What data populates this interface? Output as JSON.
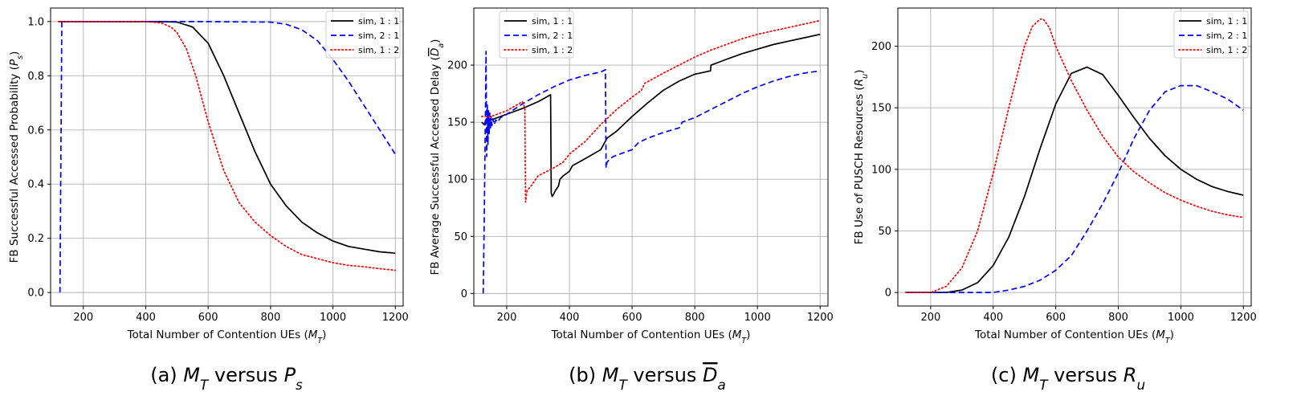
{
  "legend_labels": [
    "sim, 1 : 1",
    "sim, 2 : 1",
    "sim, 1 : 2"
  ],
  "colors": {
    "s11": "#000000",
    "s21": "#0000ff",
    "s12": "#ff0000",
    "grid": "#b0b0b0",
    "legend_frame": "#cccccc"
  },
  "chart_data": [
    {
      "type": "line",
      "xlabel": "Total Number of Contention UEs (M_T)",
      "ylabel": "FB Successful Accessed Probability (P_s)",
      "caption": "(a) M_T versus P_s",
      "xlim": [
        95,
        1225
      ],
      "ylim": [
        -0.05,
        1.05
      ],
      "xticks": [
        200,
        400,
        600,
        800,
        1000,
        1200
      ],
      "yticks": [
        0.0,
        0.2,
        0.4,
        0.6,
        0.8,
        1.0
      ],
      "ytick_labels": [
        "0.0",
        "0.2",
        "0.4",
        "0.6",
        "0.8",
        "1.0"
      ],
      "grid": true,
      "legend": "top-right",
      "series": [
        {
          "name": "sim, 1 : 1",
          "style": "solid",
          "color": "#000000",
          "x": [
            120,
            300,
            450,
            500,
            550,
            600,
            650,
            700,
            750,
            800,
            850,
            900,
            950,
            1000,
            1050,
            1100,
            1150,
            1200
          ],
          "y": [
            1.0,
            1.0,
            1.0,
            0.998,
            0.98,
            0.92,
            0.8,
            0.66,
            0.52,
            0.4,
            0.32,
            0.26,
            0.22,
            0.19,
            0.17,
            0.16,
            0.15,
            0.145
          ]
        },
        {
          "name": "sim, 2 : 1",
          "style": "dashed",
          "color": "#0000ff",
          "x": [
            125,
            128,
            131,
            200,
            400,
            600,
            800,
            850,
            900,
            950,
            1000,
            1050,
            1100,
            1150,
            1200
          ],
          "y": [
            0.0,
            0.5,
            1.0,
            1.0,
            1.0,
            1.0,
            0.998,
            0.99,
            0.97,
            0.93,
            0.86,
            0.78,
            0.69,
            0.6,
            0.51
          ]
        },
        {
          "name": "sim, 1 : 2",
          "style": "dotted",
          "color": "#ff0000",
          "x": [
            120,
            300,
            400,
            450,
            480,
            500,
            530,
            560,
            600,
            650,
            700,
            750,
            800,
            850,
            900,
            950,
            1000,
            1050,
            1100,
            1150,
            1200
          ],
          "y": [
            1.0,
            1.0,
            1.0,
            0.995,
            0.98,
            0.96,
            0.9,
            0.8,
            0.63,
            0.45,
            0.33,
            0.26,
            0.21,
            0.17,
            0.14,
            0.125,
            0.11,
            0.1,
            0.095,
            0.088,
            0.082
          ]
        }
      ]
    },
    {
      "type": "line",
      "xlabel": "Total Number of Contention UEs (M_T)",
      "ylabel": "FB Average Successful Accessed Delay (D_a)",
      "caption": "(b) M_T versus D_a",
      "xlim": [
        95,
        1225
      ],
      "ylim": [
        -11,
        250
      ],
      "xticks": [
        200,
        400,
        600,
        800,
        1000,
        1200
      ],
      "yticks": [
        0,
        50,
        100,
        150,
        200
      ],
      "ytick_labels": [
        "0",
        "50",
        "100",
        "150",
        "200"
      ],
      "grid": true,
      "legend": "top-left",
      "series": [
        {
          "name": "sim, 1 : 1",
          "style": "solid",
          "color": "#000000",
          "x": [
            120,
            128,
            135,
            150,
            200,
            250,
            300,
            340,
            342,
            345,
            350,
            355,
            360,
            365,
            370,
            380,
            400,
            410,
            450,
            500,
            510,
            520,
            550,
            600,
            650,
            700,
            750,
            800,
            850,
            852,
            900,
            950,
            1000,
            1050,
            1100,
            1150,
            1200
          ],
          "y": [
            150,
            148,
            153,
            152,
            157,
            162,
            168,
            174,
            88,
            85,
            87,
            90,
            92,
            94,
            100,
            103,
            107,
            112,
            118,
            126,
            131,
            136,
            142,
            155,
            167,
            178,
            186,
            192,
            195,
            200,
            205,
            210,
            214,
            218,
            221,
            224,
            227
          ]
        },
        {
          "name": "sim, 2 : 1",
          "style": "dashed",
          "color": "#0000ff",
          "x": [
            125,
            128,
            131,
            133,
            134,
            136,
            138,
            140,
            142,
            144,
            146,
            148,
            150,
            153,
            156,
            160,
            165,
            170,
            180,
            200,
            250,
            300,
            350,
            400,
            450,
            500,
            515,
            517,
            520,
            530,
            540,
            600,
            620,
            650,
            700,
            750,
            760,
            800,
            850,
            900,
            950,
            1000,
            1050,
            1100,
            1150,
            1200
          ],
          "y": [
            0,
            60,
            130,
            180,
            212,
            120,
            165,
            130,
            160,
            140,
            158,
            145,
            155,
            147,
            153,
            148,
            152,
            150,
            154,
            157,
            166,
            174,
            181,
            187,
            191,
            194,
            196,
            110,
            115,
            118,
            120,
            126,
            132,
            136,
            141,
            145,
            150,
            154,
            161,
            168,
            175,
            181,
            186,
            190,
            193,
            195
          ]
        },
        {
          "name": "sim, 1 : 2",
          "style": "dotted",
          "color": "#ff0000",
          "x": [
            120,
            150,
            200,
            250,
            258,
            260,
            265,
            280,
            300,
            350,
            380,
            400,
            450,
            500,
            550,
            600,
            630,
            640,
            700,
            750,
            800,
            850,
            900,
            950,
            1000,
            1050,
            1100,
            1150,
            1200
          ],
          "y": [
            155,
            155,
            160,
            168,
            162,
            80,
            90,
            95,
            103,
            110,
            115,
            122,
            133,
            148,
            161,
            172,
            178,
            184,
            193,
            200,
            207,
            213,
            218,
            223,
            227,
            230,
            233,
            236,
            239
          ]
        }
      ]
    },
    {
      "type": "line",
      "xlabel": "Total Number of Contention UEs (M_T)",
      "ylabel": "FB Use of PUSCH Resources (R_u)",
      "caption": "(c) M_T versus R_u",
      "xlim": [
        95,
        1225
      ],
      "ylim": [
        -11,
        231
      ],
      "xticks": [
        200,
        400,
        600,
        800,
        1000,
        1200
      ],
      "yticks": [
        0,
        50,
        100,
        150,
        200
      ],
      "ytick_labels": [
        "0",
        "50",
        "100",
        "150",
        "200"
      ],
      "grid": true,
      "legend": "top-right",
      "series": [
        {
          "name": "sim, 1 : 1",
          "style": "solid",
          "color": "#000000",
          "x": [
            120,
            250,
            300,
            350,
            400,
            450,
            500,
            550,
            600,
            650,
            700,
            750,
            800,
            850,
            900,
            950,
            1000,
            1050,
            1100,
            1150,
            1200
          ],
          "y": [
            0,
            0,
            2,
            8,
            22,
            45,
            78,
            117,
            153,
            178,
            183,
            177,
            160,
            142,
            125,
            111,
            100,
            92,
            86,
            82,
            79
          ]
        },
        {
          "name": "sim, 2 : 1",
          "style": "dashed",
          "color": "#0000ff",
          "x": [
            120,
            400,
            450,
            500,
            550,
            600,
            650,
            700,
            750,
            800,
            850,
            900,
            950,
            1000,
            1050,
            1100,
            1150,
            1200
          ],
          "y": [
            0,
            0,
            2,
            5,
            10,
            18,
            30,
            50,
            72,
            97,
            125,
            148,
            163,
            168,
            168,
            163,
            157,
            148
          ]
        },
        {
          "name": "sim, 1 : 2",
          "style": "dotted",
          "color": "#ff0000",
          "x": [
            120,
            200,
            250,
            300,
            350,
            400,
            450,
            500,
            525,
            550,
            560,
            580,
            600,
            650,
            700,
            750,
            800,
            850,
            900,
            950,
            1000,
            1050,
            1100,
            1150,
            1200
          ],
          "y": [
            0,
            0,
            5,
            20,
            50,
            97,
            150,
            200,
            216,
            222,
            222,
            215,
            200,
            172,
            148,
            127,
            110,
            98,
            89,
            81,
            75,
            70,
            66,
            63,
            61
          ]
        }
      ]
    }
  ]
}
